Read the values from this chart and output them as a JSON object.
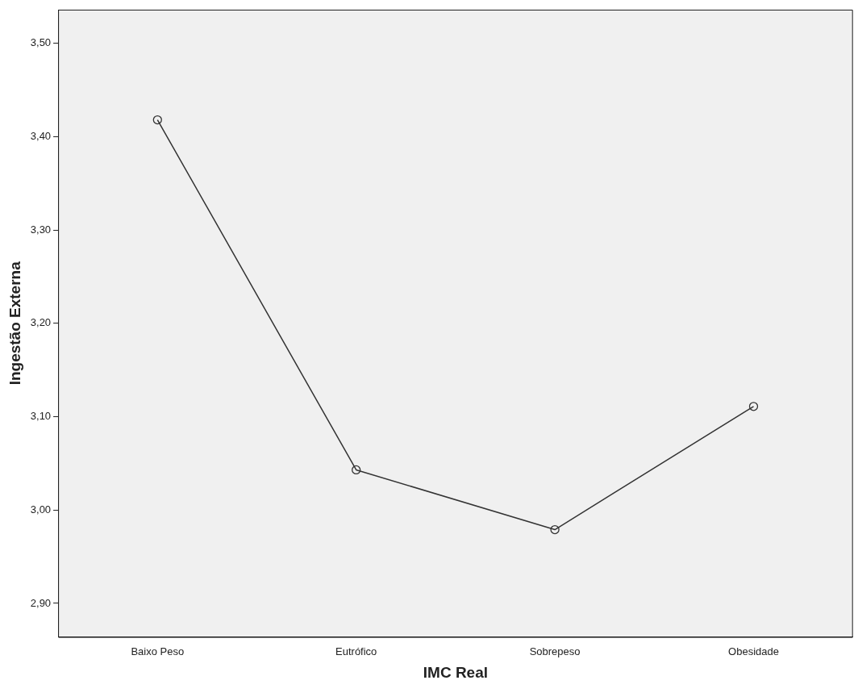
{
  "chart_data": {
    "type": "line",
    "xlabel": "IMC Real",
    "ylabel": "Ingestão Externa",
    "categories": [
      "Baixo Peso",
      "Eutrófico",
      "Sobrepeso",
      "Obesidade"
    ],
    "series": [
      {
        "color": "#333333",
        "values": [
          3.418,
          3.043,
          2.979,
          3.111
        ]
      }
    ],
    "ylim": [
      2.864,
      3.536
    ],
    "yticks": [
      {
        "value": 2.9,
        "label": "2,90"
      },
      {
        "value": 3.0,
        "label": "3,00"
      },
      {
        "value": 3.1,
        "label": "3,10"
      },
      {
        "value": 3.2,
        "label": "3,20"
      },
      {
        "value": 3.3,
        "label": "3,30"
      },
      {
        "value": 3.4,
        "label": "3,40"
      },
      {
        "value": 3.5,
        "label": "3,50"
      }
    ],
    "grid": false,
    "legend": false,
    "marker": "circle",
    "line_style": "solid"
  }
}
